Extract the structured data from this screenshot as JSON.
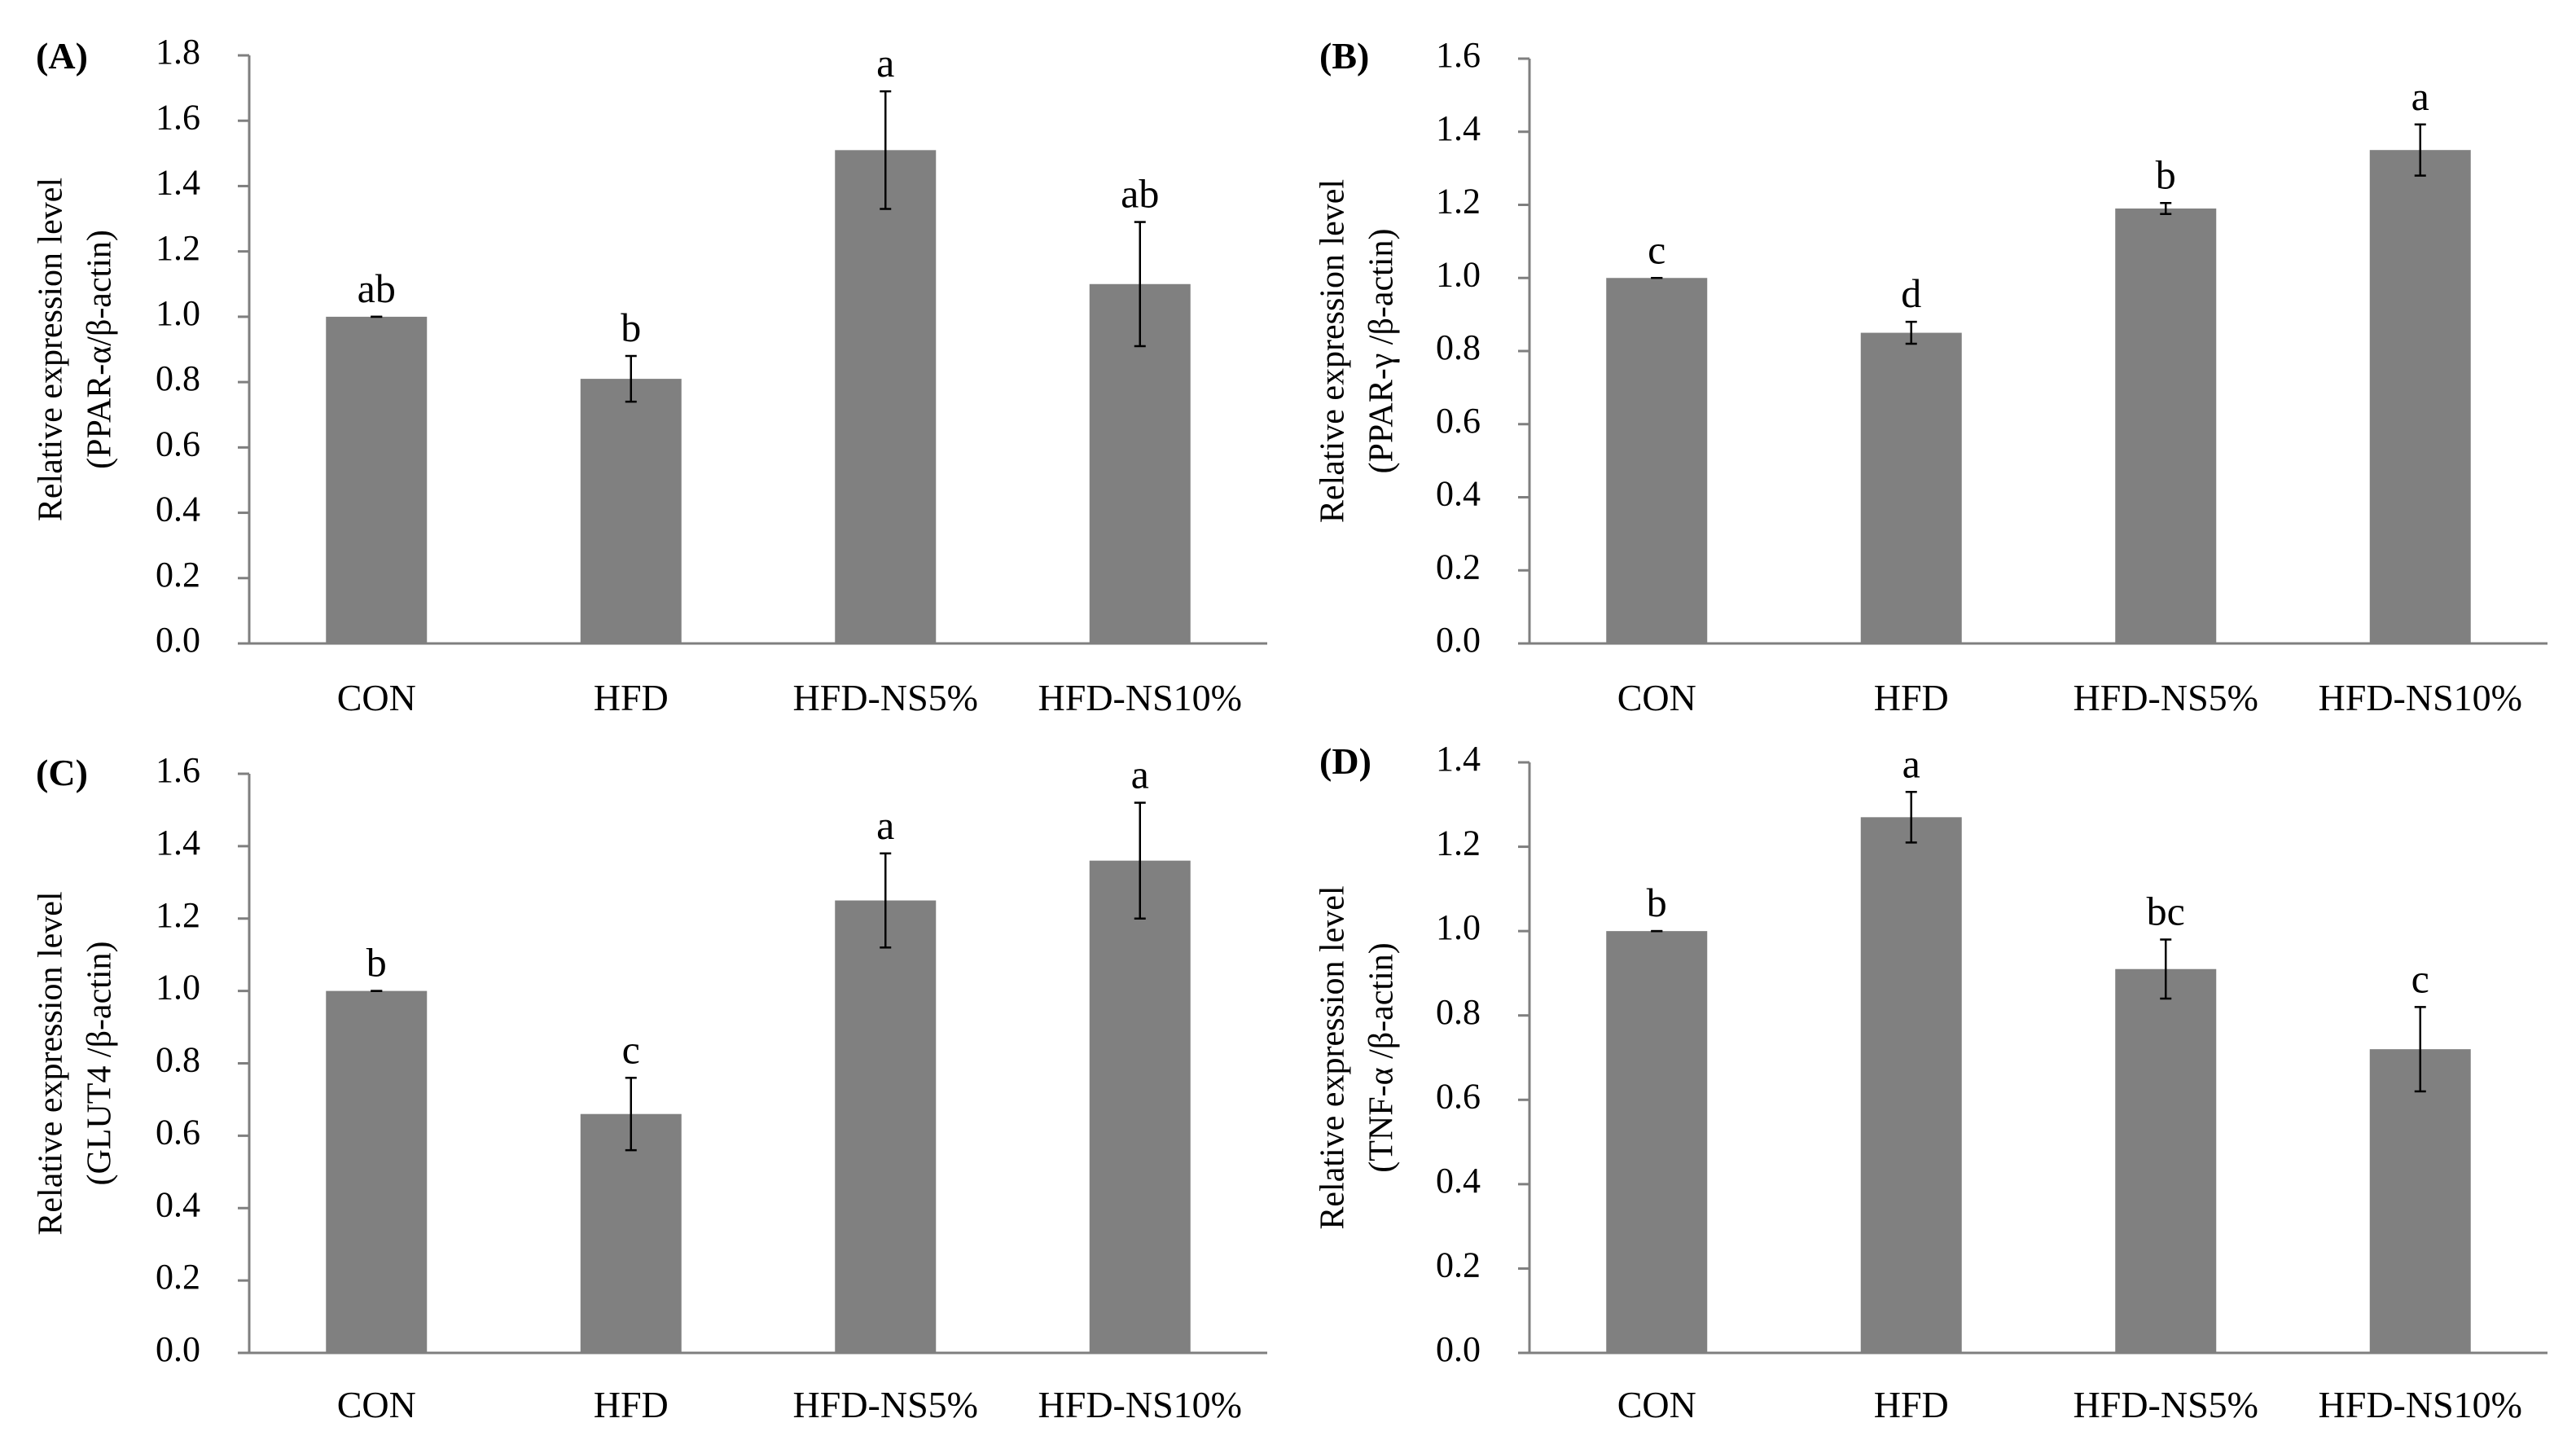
{
  "figure": {
    "bar_color": "#808080",
    "axis_color": "#7f7f7f",
    "error_color": "#000000"
  },
  "chart_data": [
    {
      "type": "bar",
      "panel": "A",
      "ylabel": [
        "Relative expression level",
        "(PPAR-α/β-actin)"
      ],
      "categories": [
        "CON",
        "HFD",
        "HFD-NS5%",
        "HFD-NS10%"
      ],
      "values": [
        1.0,
        0.81,
        1.51,
        1.1
      ],
      "errors": [
        0.0,
        0.07,
        0.18,
        0.19
      ],
      "significance": [
        "ab",
        "b",
        "a",
        "ab"
      ],
      "ylim": [
        0,
        1.8
      ],
      "yticks": [
        "0.0",
        "0.2",
        "0.4",
        "0.6",
        "0.8",
        "1.0",
        "1.2",
        "1.4",
        "1.6",
        "1.8"
      ]
    },
    {
      "type": "bar",
      "panel": "B",
      "ylabel": [
        "Relative expression level",
        "(PPAR-γ /β-actin)"
      ],
      "categories": [
        "CON",
        "HFD",
        "HFD-NS5%",
        "HFD-NS10%"
      ],
      "values": [
        1.0,
        0.85,
        1.19,
        1.35
      ],
      "errors": [
        0.0,
        0.03,
        0.015,
        0.07
      ],
      "significance": [
        "c",
        "d",
        "b",
        "a"
      ],
      "ylim": [
        0,
        1.6
      ],
      "yticks": [
        "0.0",
        "0.2",
        "0.4",
        "0.6",
        "0.8",
        "1.0",
        "1.2",
        "1.4",
        "1.6"
      ]
    },
    {
      "type": "bar",
      "panel": "C",
      "ylabel": [
        "Relative expression level",
        "(GLUT4 /β-actin)"
      ],
      "categories": [
        "CON",
        "HFD",
        "HFD-NS5%",
        "HFD-NS10%"
      ],
      "values": [
        1.0,
        0.66,
        1.25,
        1.36
      ],
      "errors": [
        0.0,
        0.1,
        0.13,
        0.16
      ],
      "significance": [
        "b",
        "c",
        "a",
        "a"
      ],
      "ylim": [
        0,
        1.6
      ],
      "yticks": [
        "0.0",
        "0.2",
        "0.4",
        "0.6",
        "0.8",
        "1.0",
        "1.2",
        "1.4",
        "1.6"
      ]
    },
    {
      "type": "bar",
      "panel": "D",
      "ylabel": [
        "Relative expression level",
        "(TNF-α /β-actin)"
      ],
      "categories": [
        "CON",
        "HFD",
        "HFD-NS5%",
        "HFD-NS10%"
      ],
      "values": [
        1.0,
        1.27,
        0.91,
        0.72
      ],
      "errors": [
        0.0,
        0.06,
        0.07,
        0.1
      ],
      "significance": [
        "b",
        "a",
        "bc",
        "c"
      ],
      "ylim": [
        0,
        1.4
      ],
      "yticks": [
        "0.0",
        "0.2",
        "0.4",
        "0.6",
        "0.8",
        "1.0",
        "1.2",
        "1.4"
      ]
    }
  ]
}
